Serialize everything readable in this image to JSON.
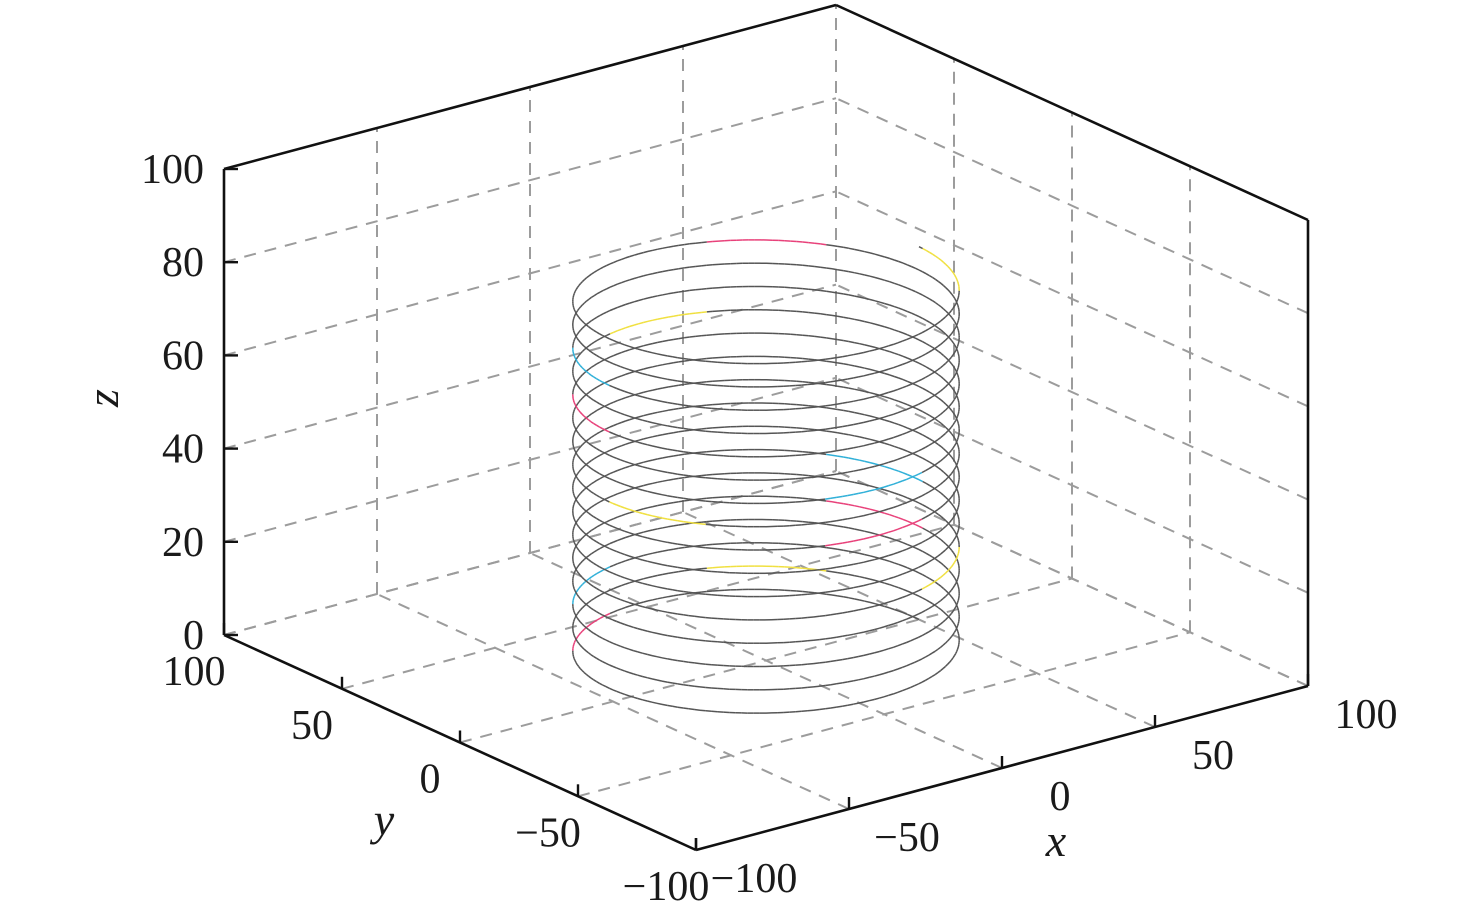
{
  "chart_data": {
    "type": "line",
    "projection": "3d",
    "title": "",
    "xlabel": "x",
    "ylabel": "y",
    "zlabel": "z",
    "xlim": [
      -100,
      100
    ],
    "ylim": [
      -100,
      100
    ],
    "zlim": [
      0,
      100
    ],
    "x_ticks": [
      {
        "value": -100,
        "label": "−100"
      },
      {
        "value": -50,
        "label": "−50"
      },
      {
        "value": 0,
        "label": "0"
      },
      {
        "value": 50,
        "label": "50"
      },
      {
        "value": 100,
        "label": "100"
      }
    ],
    "y_ticks": [
      {
        "value": -100,
        "label": "−100"
      },
      {
        "value": -50,
        "label": "−50"
      },
      {
        "value": 0,
        "label": "0"
      },
      {
        "value": 50,
        "label": "50"
      },
      {
        "value": 100,
        "label": "100"
      }
    ],
    "z_ticks": [
      {
        "value": 0,
        "label": "0"
      },
      {
        "value": 20,
        "label": "20"
      },
      {
        "value": 40,
        "label": "40"
      },
      {
        "value": 60,
        "label": "60"
      },
      {
        "value": 80,
        "label": "80"
      },
      {
        "value": 100,
        "label": "100"
      }
    ],
    "grid": true,
    "legend": "none",
    "series": [
      {
        "kind": "helix",
        "radius": 50,
        "z_start": 0,
        "z_end": 80,
        "turns": 16,
        "color": "#555555",
        "highlight_colors": [
          "#e8417a",
          "#f0e040",
          "#30b0d8"
        ]
      }
    ]
  }
}
